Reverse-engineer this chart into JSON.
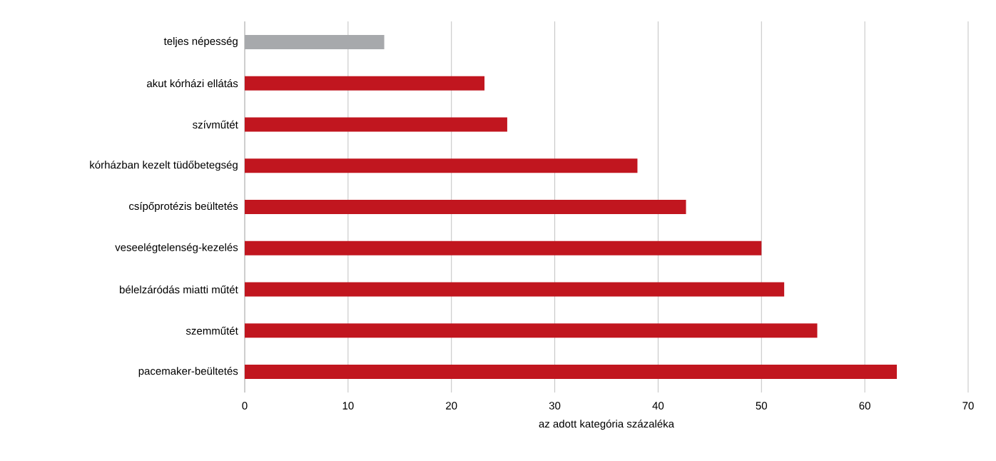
{
  "chart_data": {
    "type": "bar",
    "orientation": "horizontal",
    "xlabel": "az adott kategória százaléka",
    "categories": [
      "teljes népesség",
      "akut kórházi ellátás",
      "szívműtét",
      "kórházban kezelt tüdőbetegség",
      "csípőprotézis beültetés",
      "veseelégtelenség-kezelés",
      "bélelzáródás miatti műtét",
      "szemműtét",
      "pacemaker-beültetés"
    ],
    "values": [
      13.5,
      23.2,
      25.4,
      38.0,
      42.7,
      50.0,
      52.2,
      55.4,
      63.1
    ],
    "colors": [
      "#a7a9ac",
      "#c1161f",
      "#c1161f",
      "#c1161f",
      "#c1161f",
      "#c1161f",
      "#c1161f",
      "#c1161f",
      "#c1161f"
    ],
    "xlim": [
      0,
      70
    ],
    "xticks": [
      0,
      10,
      20,
      30,
      40,
      50,
      60,
      70
    ],
    "grid": "x"
  }
}
